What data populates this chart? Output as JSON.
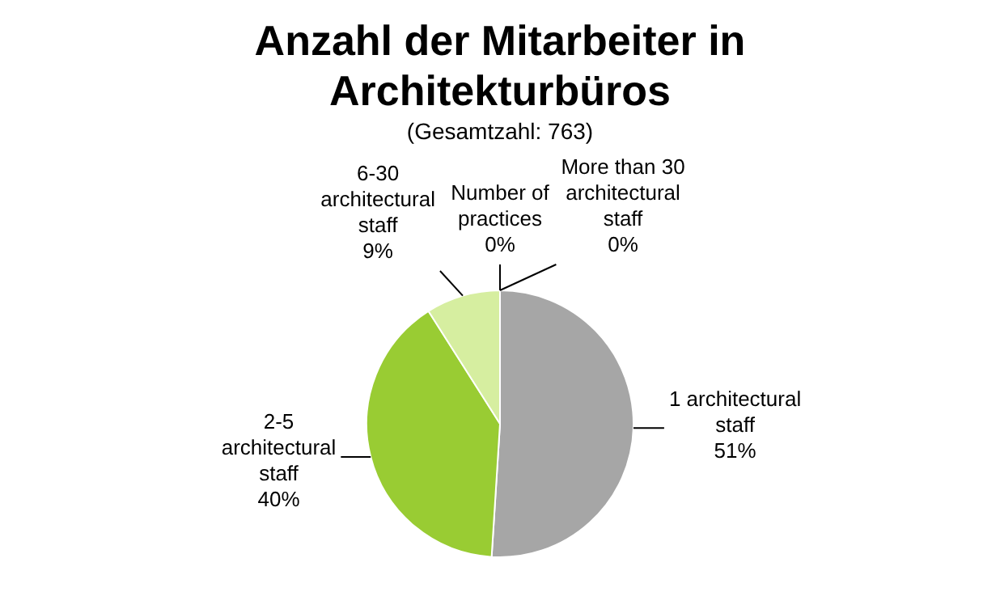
{
  "chart_data": {
    "type": "pie",
    "title": "Anzahl der Mitarbeiter in Architekturbüros",
    "subtitle": "(Gesamtzahl: 763)",
    "categories": [
      "Number of practices",
      "1 architectural staff",
      "2-5 architectural staff",
      "6-30 architectural staff",
      "More than 30 architectural staff"
    ],
    "values": [
      0,
      51,
      40,
      9,
      0
    ],
    "colors": [
      "#4f81bd",
      "#a6a6a6",
      "#99cc33",
      "#d6eea0",
      "#8064a2"
    ],
    "value_labels": [
      "0%",
      "51%",
      "40%",
      "9%",
      "0%"
    ],
    "legend": false
  }
}
